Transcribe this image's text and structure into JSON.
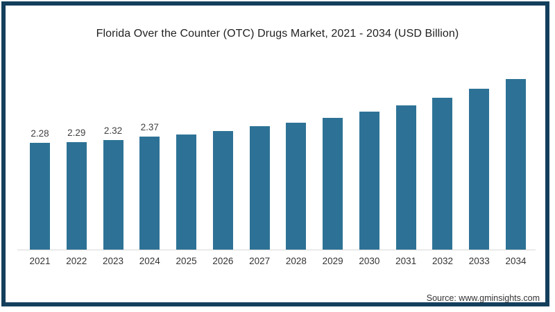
{
  "page": {
    "background": "#ffffff",
    "frame_border_color": "#143f5c"
  },
  "header": {
    "title": "Florida Over the Counter (OTC) Drugs Market, 2021 - 2034 (USD Billion)"
  },
  "footer": {
    "source": "Source: www.gminsights.com"
  },
  "chart_data": {
    "type": "bar",
    "title": "Florida Over the Counter (OTC) Drugs Market, 2021 - 2034 (USD Billion)",
    "unit": "USD Billion",
    "categories": [
      "2021",
      "2022",
      "2023",
      "2024",
      "2025",
      "2026",
      "2027",
      "2028",
      "2029",
      "2030",
      "2031",
      "2032",
      "2033",
      "2034"
    ],
    "values": [
      2.28,
      2.29,
      2.32,
      2.37,
      2.4,
      2.45,
      2.52,
      2.57,
      2.64,
      2.73,
      2.82,
      2.93,
      3.06,
      3.2
    ],
    "data_labels": [
      "2.28",
      "2.29",
      "2.32",
      "2.37",
      "",
      "",
      "",
      "",
      "",
      "",
      "",
      "",
      "",
      ""
    ],
    "bar_color": "#2d7296",
    "axis_line_color": "#d9d9d9",
    "tick_label_color": "#333333",
    "data_label_color": "#404040",
    "y_baseline_value": 0.74,
    "ylim": [
      0.74,
      3.35
    ],
    "grid": false,
    "legend": false,
    "xlabel": "",
    "ylabel": ""
  }
}
